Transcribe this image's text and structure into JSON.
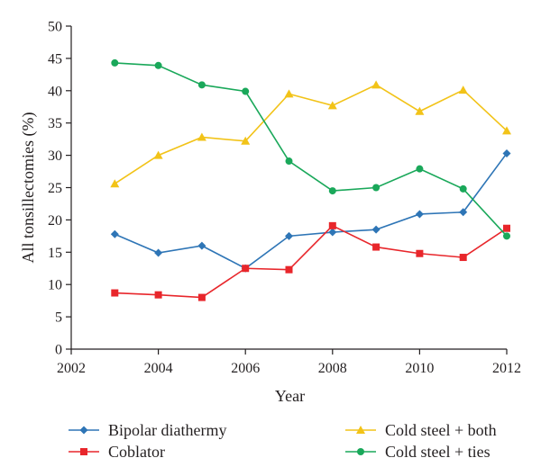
{
  "chart_data": {
    "type": "line",
    "xlabel": "Year",
    "ylabel": "All tonsillectomies (%)",
    "xlim": [
      2002,
      2012
    ],
    "ylim": [
      0,
      50
    ],
    "x_ticks": [
      2002,
      2004,
      2006,
      2008,
      2010,
      2012
    ],
    "y_ticks": [
      0,
      5,
      10,
      15,
      20,
      25,
      30,
      35,
      40,
      45,
      50
    ],
    "grid": false,
    "legend_position": "bottom",
    "x": [
      2003,
      2004,
      2005,
      2006,
      2007,
      2008,
      2009,
      2010,
      2011,
      2012
    ],
    "series": [
      {
        "name": "Bipolar diathermy",
        "color": "#2e75b6",
        "marker": "diamond",
        "values": [
          17.8,
          14.9,
          16.0,
          12.5,
          17.5,
          18.1,
          18.5,
          20.9,
          21.2,
          30.3
        ]
      },
      {
        "name": "Coblator",
        "color": "#e8262b",
        "marker": "square",
        "values": [
          8.7,
          8.4,
          8.0,
          12.5,
          12.3,
          19.1,
          15.8,
          14.8,
          14.2,
          18.7
        ]
      },
      {
        "name": "Cold steel + both",
        "color": "#f2c318",
        "marker": "triangle",
        "values": [
          25.6,
          30.0,
          32.8,
          32.2,
          39.5,
          37.7,
          40.9,
          36.8,
          40.1,
          33.8
        ]
      },
      {
        "name": "Cold steel + ties",
        "color": "#1aa85a",
        "marker": "circle",
        "values": [
          44.3,
          43.9,
          40.9,
          39.9,
          29.1,
          24.5,
          25.0,
          27.9,
          24.8,
          17.5
        ]
      }
    ]
  }
}
